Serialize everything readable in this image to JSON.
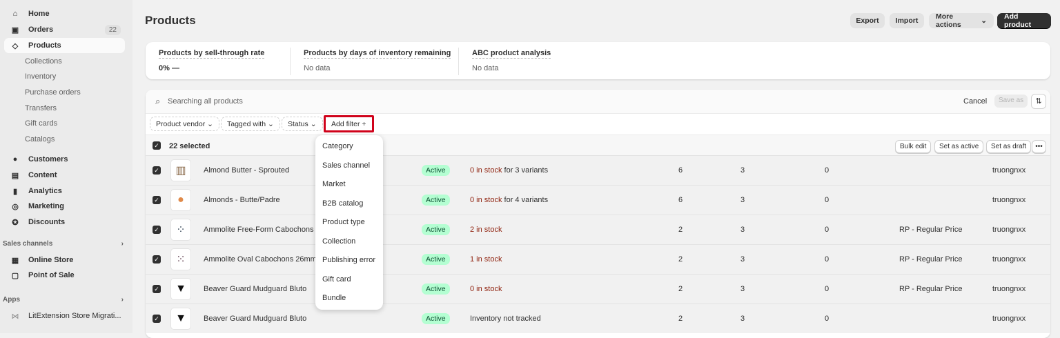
{
  "sidebar": {
    "items": [
      {
        "label": "Home",
        "icon": "home-icon"
      },
      {
        "label": "Orders",
        "icon": "inbox-icon",
        "badge": "22"
      },
      {
        "label": "Products",
        "icon": "tag-icon",
        "active": true
      },
      {
        "label": "Collections"
      },
      {
        "label": "Inventory"
      },
      {
        "label": "Purchase orders"
      },
      {
        "label": "Transfers"
      },
      {
        "label": "Gift cards"
      },
      {
        "label": "Catalogs"
      },
      {
        "label": "Customers",
        "icon": "person-icon"
      },
      {
        "label": "Content",
        "icon": "content-icon"
      },
      {
        "label": "Analytics",
        "icon": "bar-chart-icon"
      },
      {
        "label": "Marketing",
        "icon": "target-icon"
      },
      {
        "label": "Discounts",
        "icon": "discount-icon"
      }
    ],
    "sales_channels_label": "Sales channels",
    "channels": [
      {
        "label": "Online Store",
        "icon": "store-icon"
      },
      {
        "label": "Point of Sale",
        "icon": "pos-icon"
      }
    ],
    "apps_label": "Apps",
    "apps": [
      {
        "label": "LitExtension Store Migrati...",
        "icon": "app-icon"
      }
    ]
  },
  "header": {
    "title": "Products",
    "export": "Export",
    "import": "Import",
    "more_actions": "More actions",
    "add_product": "Add product"
  },
  "metrics": [
    {
      "label": "Products by sell-through rate",
      "value": "0%  —"
    },
    {
      "label": "Products by days of inventory remaining",
      "value": "No data"
    },
    {
      "label": "ABC product analysis",
      "value": "No data"
    }
  ],
  "search": {
    "placeholder": "Searching all products",
    "cancel": "Cancel",
    "save_as": "Save as"
  },
  "filters": {
    "vendor": "Product vendor",
    "tagged": "Tagged with",
    "status": "Status",
    "add_filter": "Add filter +"
  },
  "selection": {
    "count_label": "22 selected",
    "bulk_edit": "Bulk edit",
    "set_active": "Set as active",
    "set_draft": "Set as draft"
  },
  "dropdown": [
    "Category",
    "Sales channel",
    "Market",
    "B2B catalog",
    "Product type",
    "Collection",
    "Publishing error",
    "Gift card",
    "Bundle"
  ],
  "highlight_color": "#d0021b",
  "rows": [
    {
      "name": "Almond Butter - Sprouted",
      "status": "Active",
      "stock": "0 in stock",
      "stock_suffix": " for 3 variants",
      "c1": "6",
      "c2": "3",
      "c3": "0",
      "catalog": "",
      "vendor": "truongnxx"
    },
    {
      "name": "Almonds - Butte/Padre",
      "status": "Active",
      "stock": "0 in stock",
      "stock_suffix": " for 4 variants",
      "c1": "6",
      "c2": "3",
      "c3": "0",
      "catalog": "",
      "vendor": "truongnxx"
    },
    {
      "name": "Ammolite Free-Form Cabochons",
      "status": "Active",
      "stock": "2 in stock",
      "stock_suffix": "",
      "c1": "2",
      "c2": "3",
      "c3": "0",
      "catalog": "RP - Regular Price",
      "vendor": "truongnxx"
    },
    {
      "name": "Ammolite Oval Cabochons 26mm",
      "status": "Active",
      "stock": "1 in stock",
      "stock_suffix": "",
      "c1": "2",
      "c2": "3",
      "c3": "0",
      "catalog": "RP - Regular Price",
      "vendor": "truongnxx"
    },
    {
      "name": "Beaver Guard Mudguard Bluto",
      "status": "Active",
      "stock": "0 in stock",
      "stock_suffix": "",
      "c1": "2",
      "c2": "3",
      "c3": "0",
      "catalog": "RP - Regular Price",
      "vendor": "truongnxx"
    },
    {
      "name": "Beaver Guard Mudguard Bluto",
      "status": "Active",
      "stock": "",
      "stock_suffix": "Inventory not tracked",
      "c1": "2",
      "c2": "3",
      "c3": "0",
      "catalog": "",
      "vendor": "truongnxx"
    }
  ]
}
